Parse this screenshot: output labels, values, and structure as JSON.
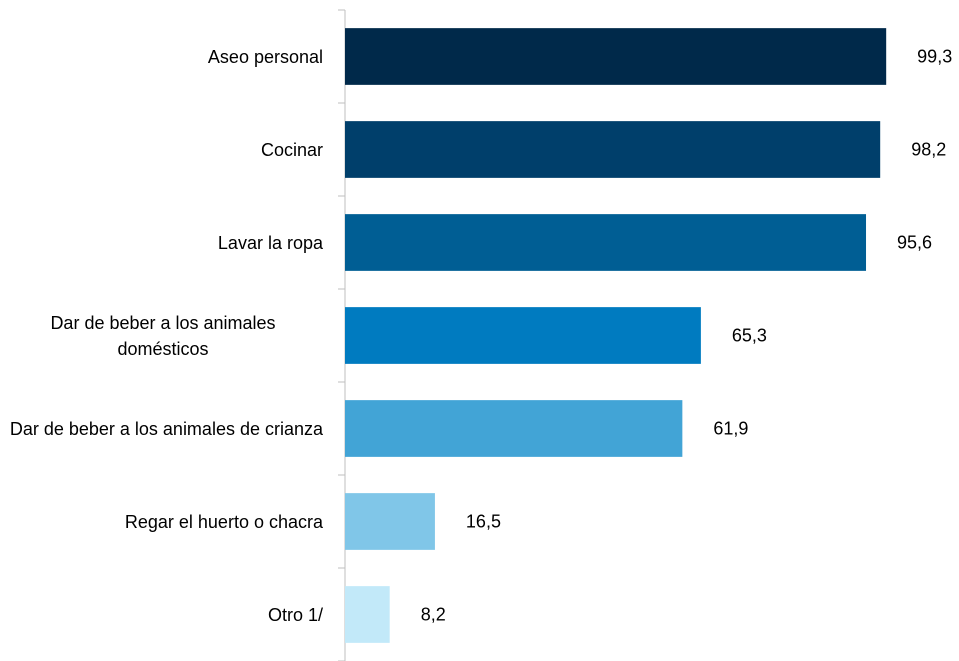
{
  "chart_data": {
    "type": "barh",
    "categories": [
      "Aseo personal",
      "Cocinar",
      "Lavar la ropa",
      "Dar de beber a los animales domésticos",
      "Dar de beber a los animales de crianza",
      "Regar el huerto o chacra",
      "Otro 1/"
    ],
    "values": [
      99.3,
      98.2,
      95.6,
      65.3,
      61.9,
      16.5,
      8.2
    ],
    "value_labels": [
      "99,3",
      "98,2",
      "95,6",
      "65,3",
      "61,9",
      "16,5",
      "8,2"
    ],
    "colors": [
      "#00294a",
      "#003f6b",
      "#005e94",
      "#007bc0",
      "#42a4d6",
      "#80c6e8",
      "#c2e9f9"
    ],
    "xlim": [
      0,
      100
    ]
  }
}
